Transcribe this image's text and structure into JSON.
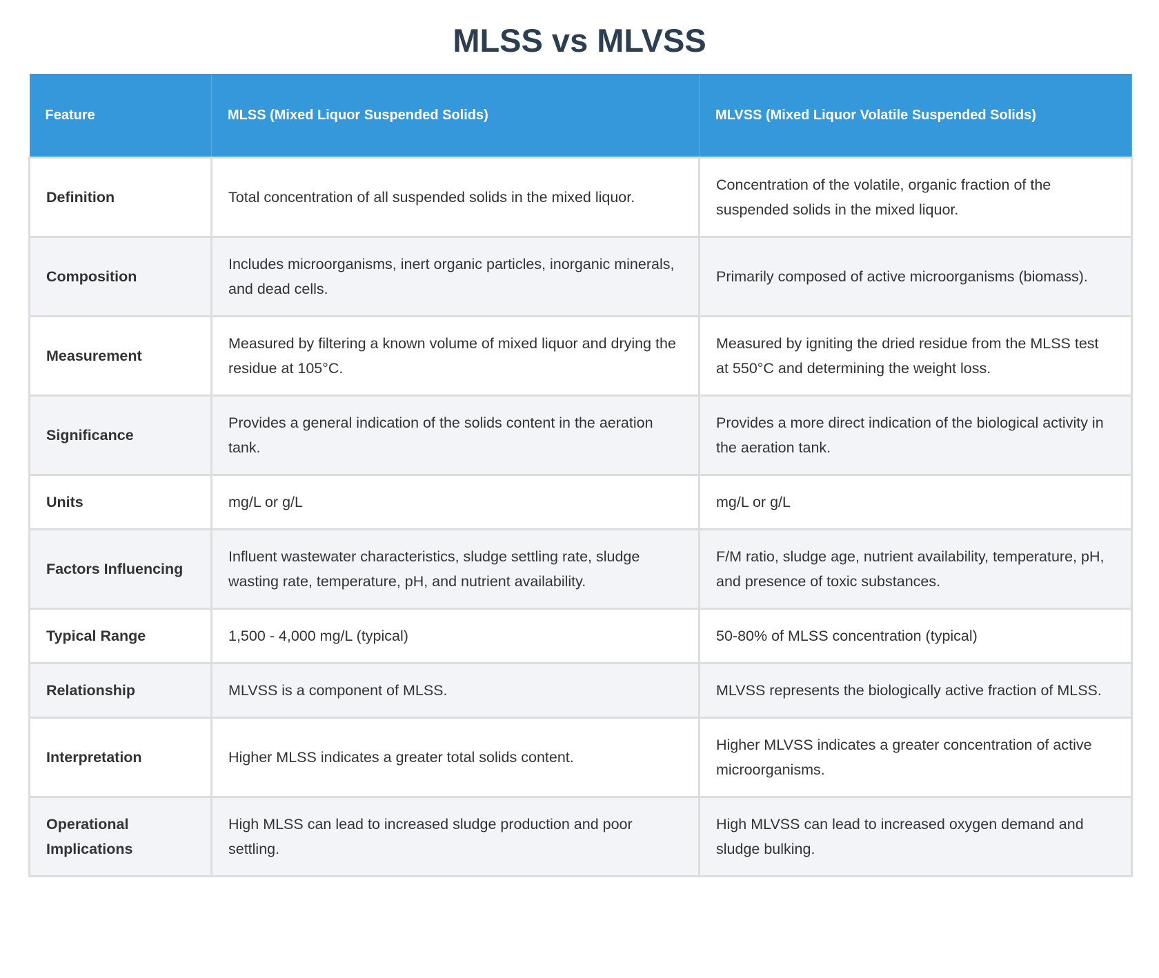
{
  "title": "MLSS vs MLVSS",
  "headers": [
    "Feature",
    "MLSS (Mixed Liquor Suspended Solids)",
    "MLVSS (Mixed Liquor Volatile Suspended Solids)"
  ],
  "rows": [
    [
      "Definition",
      "Total concentration of all suspended solids in the mixed liquor.",
      "Concentration of the volatile, organic fraction of the suspended solids in the mixed liquor."
    ],
    [
      "Composition",
      "Includes microorganisms, inert organic particles, inorganic minerals, and dead cells.",
      "Primarily composed of active microorganisms (biomass)."
    ],
    [
      "Measurement",
      "Measured by filtering a known volume of mixed liquor and drying the residue at 105°C.",
      "Measured by igniting the dried residue from the MLSS test at 550°C and determining the weight loss."
    ],
    [
      "Significance",
      "Provides a general indication of the solids content in the aeration tank.",
      "Provides a more direct indication of the biological activity in the aeration tank."
    ],
    [
      "Units",
      "mg/L or g/L",
      "mg/L or g/L"
    ],
    [
      "Factors Influencing",
      "Influent wastewater characteristics, sludge settling rate, sludge wasting rate, temperature, pH, and nutrient availability.",
      "F/M ratio, sludge age, nutrient availability, temperature, pH, and presence of toxic substances."
    ],
    [
      "Typical Range",
      "1,500 - 4,000 mg/L (typical)",
      "50-80% of MLSS concentration (typical)"
    ],
    [
      "Relationship",
      "MLVSS is a component of MLSS.",
      "MLVSS represents the biologically active fraction of MLSS."
    ],
    [
      "Interpretation",
      "Higher MLSS indicates a greater total solids content.",
      "Higher MLVSS indicates a greater concentration of active microorganisms."
    ],
    [
      "Operational Implications",
      "High MLSS can lead to increased sludge production and poor settling.",
      "High MLVSS can lead to increased oxygen demand and sludge bulking."
    ]
  ],
  "colors": {
    "header_bg": "#3498db",
    "title": "#2c3e50",
    "alt_row": "#f2f4f8"
  }
}
